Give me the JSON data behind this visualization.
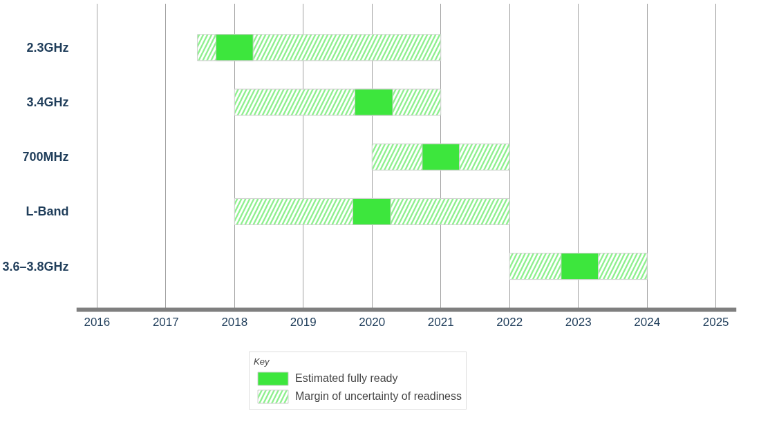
{
  "chart_data": {
    "type": "bar",
    "orientation": "horizontal",
    "categories": [
      "2.3GHz",
      "3.4GHz",
      "700MHz",
      "L-Band",
      "3.6–3.8GHz"
    ],
    "series": [
      {
        "name": "Estimated fully ready",
        "color": "#3de63d",
        "base": [
          2017.73,
          2019.75,
          2020.73,
          2019.72,
          2022.75
        ],
        "values": [
          0.54,
          0.55,
          0.54,
          0.55,
          0.54
        ]
      },
      {
        "name": "Margin of uncertainty of readiness",
        "color": "#8ef08e",
        "base": [
          2017.46,
          2018,
          2020,
          2018,
          2022
        ],
        "values": [
          3.54,
          3,
          2,
          4,
          2
        ]
      }
    ],
    "xlim": [
      2015.7,
      2025.3
    ],
    "xticks": [
      2016,
      2017,
      2018,
      2019,
      2020,
      2021,
      2022,
      2023,
      2024,
      2025
    ],
    "grid": "x",
    "legend": "bottom",
    "legend_title": "Key"
  }
}
